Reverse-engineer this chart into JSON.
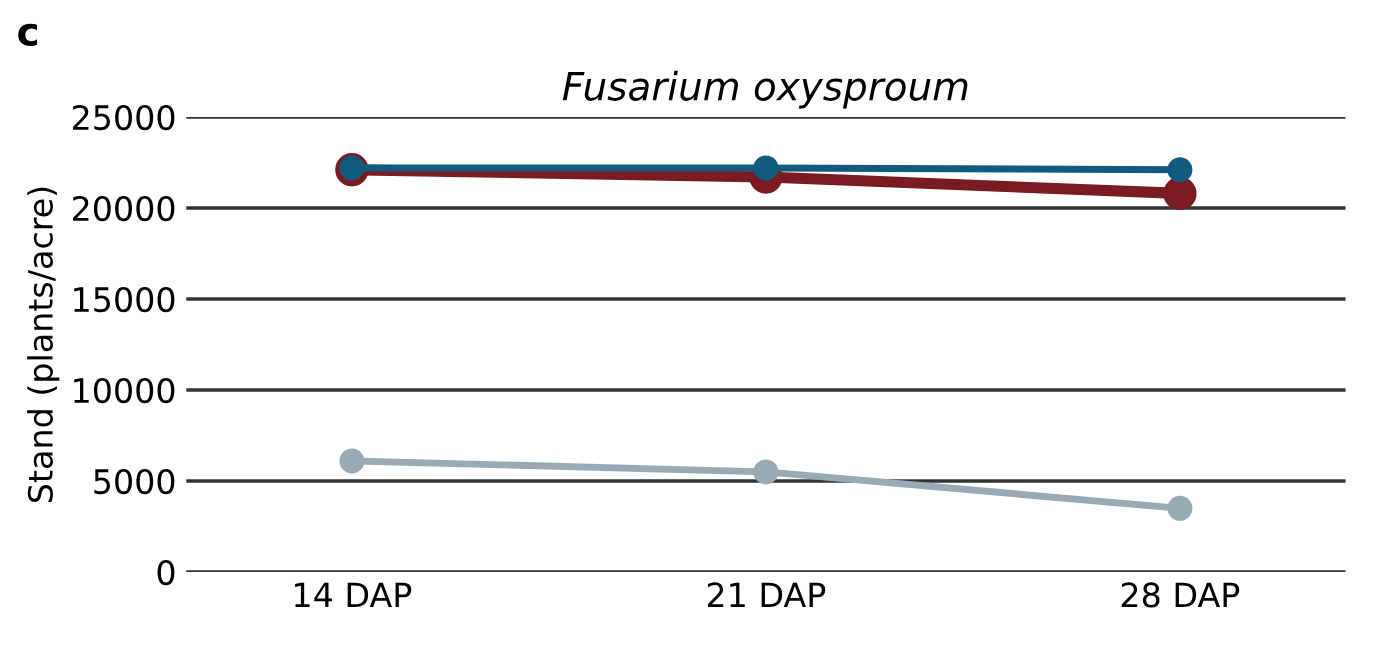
{
  "chart_data": {
    "type": "line",
    "title": "Fusarium oxysproum",
    "ylabel": "Stand (plants/acre)",
    "annotations": [
      "c"
    ],
    "categories": [
      "14 DAP",
      "21 DAP",
      "28 DAP"
    ],
    "series": [
      {
        "color": "#7a1a22",
        "values": [
          22100,
          21700,
          20800
        ]
      },
      {
        "color": "#115b7e",
        "values": [
          22200,
          22200,
          22100
        ]
      },
      {
        "color": "#9aaab4",
        "values": [
          6100,
          5500,
          3500
        ]
      }
    ],
    "ylim": [
      0,
      25000
    ],
    "yticks": [
      0,
      5000,
      10000,
      15000,
      20000,
      25000
    ],
    "grid": "y",
    "marker": "circle",
    "line_style": "solid",
    "legend": false
  }
}
